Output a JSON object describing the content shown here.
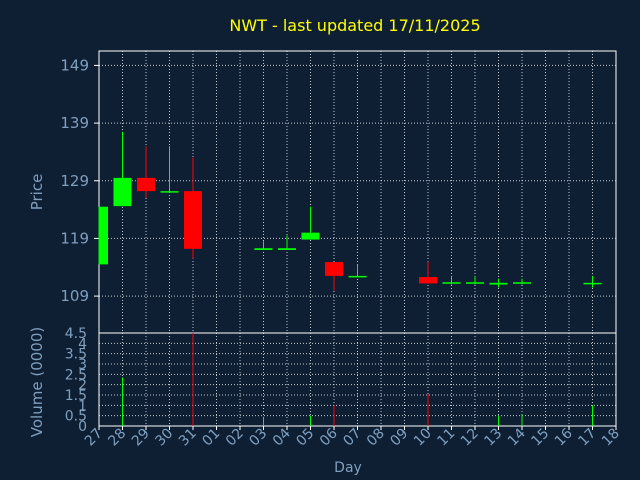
{
  "chart_data": {
    "type": "candlestick",
    "title": "NWT - last updated 17/11/2025",
    "xlabel": "Day",
    "price_ylabel": "Price",
    "volume_ylabel": "Volume (0000)",
    "x_ticks": [
      "27",
      "28",
      "29",
      "30",
      "31",
      "01",
      "02",
      "03",
      "04",
      "05",
      "06",
      "07",
      "08",
      "09",
      "10",
      "11",
      "12",
      "13",
      "14",
      "15",
      "16",
      "17",
      "18"
    ],
    "price_ticks": [
      109,
      119,
      129,
      139,
      149
    ],
    "price_ylim": [
      102.6,
      151.5
    ],
    "volume_ticks": [
      "0",
      "0.5",
      "1",
      "1.5",
      "2",
      "2.5",
      "3",
      "3.5",
      "4",
      "4.5"
    ],
    "volume_ylim": [
      0,
      4.5
    ],
    "grid": true,
    "colors": {
      "background": "#0f1f33",
      "grid": "#ffffff",
      "axis_text": "#7f9fbf",
      "title": "#ffff00",
      "up": "#00ff00",
      "down": "#ff0000"
    },
    "candles": [
      {
        "day": "27",
        "open": 114.5,
        "close": 124.5,
        "high": 124.5,
        "low": 114.5
      },
      {
        "day": "28",
        "open": 124.6,
        "close": 129.5,
        "high": 137.5,
        "low": 124.6
      },
      {
        "day": "29",
        "open": 129.5,
        "close": 127.2,
        "high": 135.0,
        "low": 126.0
      },
      {
        "day": "30",
        "open": 127.0,
        "close": 127.2,
        "high": 135.0,
        "low": 127.0
      },
      {
        "day": "31",
        "open": 127.2,
        "close": 117.2,
        "high": 133.0,
        "low": 115.5
      },
      {
        "day": "03",
        "open": 117.0,
        "close": 117.3,
        "high": 118.5,
        "low": 117.0
      },
      {
        "day": "04",
        "open": 117.0,
        "close": 117.3,
        "high": 119.5,
        "low": 117.0
      },
      {
        "day": "05",
        "open": 118.8,
        "close": 120.0,
        "high": 124.5,
        "low": 118.8
      },
      {
        "day": "06",
        "open": 114.9,
        "close": 112.5,
        "high": 114.9,
        "low": 110.0
      },
      {
        "day": "07",
        "open": 112.3,
        "close": 112.5,
        "high": 114.5,
        "low": 112.3
      },
      {
        "day": "10",
        "open": 112.3,
        "close": 111.2,
        "high": 115.0,
        "low": 111.2
      },
      {
        "day": "11",
        "open": 111.2,
        "close": 111.4,
        "high": 112.5,
        "low": 111.0
      },
      {
        "day": "12",
        "open": 111.2,
        "close": 111.4,
        "high": 112.5,
        "low": 111.0
      },
      {
        "day": "13",
        "open": 111.0,
        "close": 111.3,
        "high": 112.0,
        "low": 110.5
      },
      {
        "day": "14",
        "open": 111.2,
        "close": 111.4,
        "high": 112.0,
        "low": 111.0
      },
      {
        "day": "17",
        "open": 111.1,
        "close": 111.3,
        "high": 112.5,
        "low": 110.5
      }
    ],
    "volumes": [
      {
        "day": "28",
        "value": 2.35,
        "dir": "up"
      },
      {
        "day": "31",
        "value": 4.5,
        "dir": "down"
      },
      {
        "day": "03",
        "value": 0.45,
        "dir": "up"
      },
      {
        "day": "05",
        "value": 0.5,
        "dir": "up"
      },
      {
        "day": "06",
        "value": 1.0,
        "dir": "down"
      },
      {
        "day": "10",
        "value": 1.55,
        "dir": "down"
      },
      {
        "day": "13",
        "value": 0.5,
        "dir": "up"
      },
      {
        "day": "14",
        "value": 0.55,
        "dir": "up"
      },
      {
        "day": "17",
        "value": 1.0,
        "dir": "up"
      }
    ]
  }
}
